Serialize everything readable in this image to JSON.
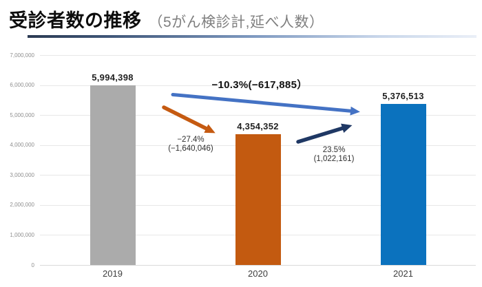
{
  "title": {
    "main": "受診者数の推移",
    "subtitle": "（5がん検診計,延べ人数）"
  },
  "chart_data": {
    "type": "bar",
    "title": "受診者数の推移（5がん検診計,延べ人数）",
    "categories": [
      "2019",
      "2020",
      "2021"
    ],
    "values": [
      5994398,
      4354352,
      5376513
    ],
    "value_labels": [
      "5,994,398",
      "4,354,352",
      "5,376,513"
    ],
    "bar_colors": [
      "#ABABAB",
      "#C35A10",
      "#0B72BE"
    ],
    "xlabel": "",
    "ylabel": "",
    "ylim": [
      0,
      7000000
    ],
    "ytick_interval": 1000000,
    "yticks": [
      "7,000,000",
      "6,000,000",
      "5,000,000",
      "4,000,000",
      "3,000,000",
      "2,000,000",
      "1,000,000",
      "0"
    ],
    "grid": true,
    "legend": false,
    "annotations": [
      {
        "id": "change-2019-2021",
        "text": "−10.3%(−617,885）",
        "arrow_color": "#4472C4"
      },
      {
        "id": "change-2019-2020",
        "line1": "−27.4%",
        "line2": "(−1,640,046)",
        "arrow_color": "#C55A11"
      },
      {
        "id": "change-2020-2021",
        "line1": "23.5%",
        "line2": "(1,022,161)",
        "arrow_color": "#1F3864"
      }
    ]
  }
}
